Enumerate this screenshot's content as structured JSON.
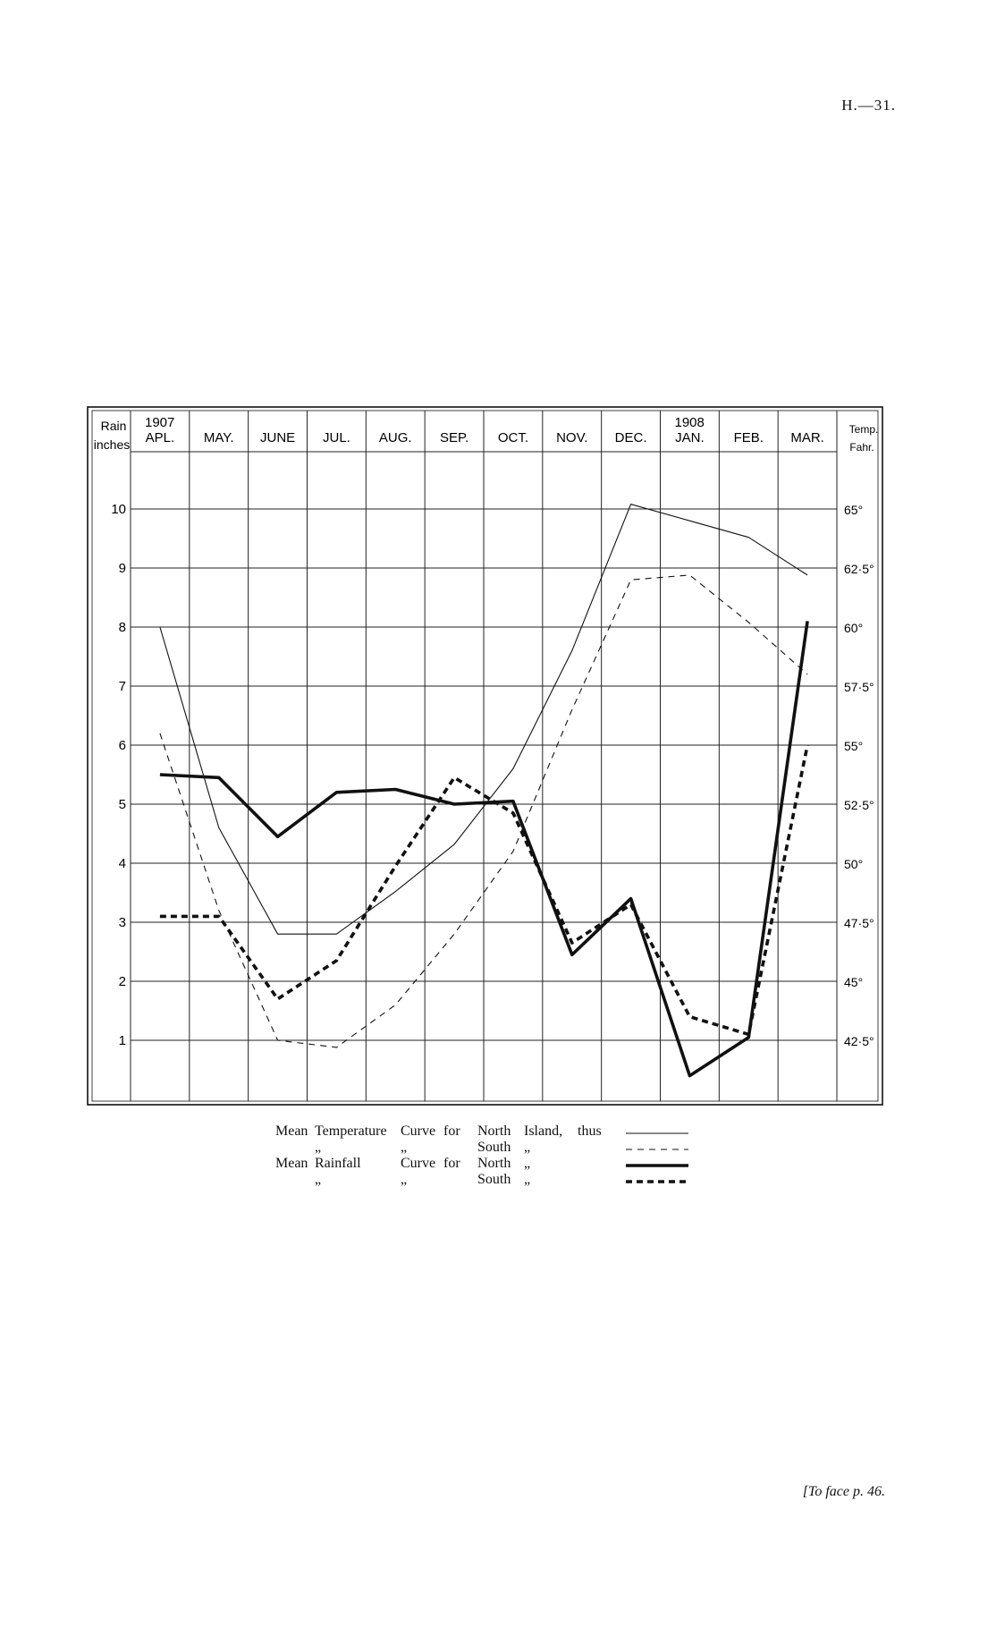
{
  "page_ref": "H.—31.",
  "footer_note": "[To face p. 46.",
  "chart_data": {
    "type": "line",
    "title": "",
    "left_axis": {
      "label_line1": "Rain",
      "label_line2": "inches",
      "ticks": [
        "1",
        "2",
        "3",
        "4",
        "5",
        "6",
        "7",
        "8",
        "9",
        "10"
      ],
      "range": [
        0,
        11
      ]
    },
    "right_axis": {
      "label_line1": "Temp.",
      "label_line2": "Fahr.",
      "ticks": [
        "42·5°",
        "45°",
        "47·5°",
        "50°",
        "52·5°",
        "55°",
        "57·5°",
        "60°",
        "62·5°",
        "65°"
      ],
      "range": [
        40,
        67.5
      ]
    },
    "years": [
      {
        "label": "1907",
        "at_month": 0
      },
      {
        "label": "1908",
        "at_month": 9
      }
    ],
    "categories": [
      "APL.",
      "MAY.",
      "JUNE",
      "JUL.",
      "AUG.",
      "SEP.",
      "OCT.",
      "NOV.",
      "DEC.",
      "JAN.",
      "FEB.",
      "MAR."
    ],
    "grid": true,
    "series": [
      {
        "axis": "right",
        "style": "thin-solid",
        "points": [
          [
            0,
            60
          ],
          [
            1,
            51.5
          ],
          [
            2,
            47
          ],
          [
            3,
            47
          ],
          [
            4,
            48.8
          ],
          [
            5,
            50.8
          ],
          [
            6,
            54
          ],
          [
            7,
            59
          ],
          [
            8,
            65.2
          ],
          [
            9,
            64.5
          ],
          [
            10,
            63.8
          ],
          [
            11,
            62.2
          ]
        ]
      },
      {
        "axis": "right",
        "style": "thin-dashed",
        "points": [
          [
            0,
            55.5
          ],
          [
            1,
            48
          ],
          [
            2,
            42.5
          ],
          [
            3,
            42.2
          ],
          [
            4,
            44
          ],
          [
            5,
            47
          ],
          [
            6,
            50.5
          ],
          [
            7,
            56.5
          ],
          [
            8,
            62
          ],
          [
            9,
            62.2
          ],
          [
            10,
            60.2
          ],
          [
            11,
            58
          ]
        ]
      },
      {
        "axis": "left",
        "style": "thick-solid",
        "points": [
          [
            0,
            5.5
          ],
          [
            1,
            5.45
          ],
          [
            2,
            4.45
          ],
          [
            3,
            5.2
          ],
          [
            4,
            5.25
          ],
          [
            5,
            5.0
          ],
          [
            6,
            5.05
          ],
          [
            7,
            2.45
          ],
          [
            8,
            3.4
          ],
          [
            9,
            0.4
          ],
          [
            10,
            1.05
          ],
          [
            11,
            8.1
          ]
        ]
      },
      {
        "axis": "left",
        "style": "thick-dashed",
        "points": [
          [
            0,
            3.1
          ],
          [
            1,
            3.1
          ],
          [
            2,
            1.7
          ],
          [
            3,
            2.35
          ],
          [
            4,
            3.95
          ],
          [
            5,
            5.45
          ],
          [
            6,
            4.85
          ],
          [
            7,
            2.65
          ],
          [
            8,
            3.3
          ],
          [
            9,
            1.4
          ],
          [
            10,
            1.1
          ],
          [
            11,
            6.0
          ]
        ]
      }
    ]
  },
  "legend": {
    "rows": [
      {
        "a": "Mean",
        "b": "Temperature",
        "c": "Curve",
        "d": "for",
        "e": "North",
        "f": "Island,",
        "g": "thus",
        "style": "thin-solid"
      },
      {
        "a": "",
        "b": "„",
        "c": "„",
        "d": "",
        "e": "South",
        "f": "„",
        "g": "",
        "style": "thin-dashed"
      },
      {
        "a": "Mean",
        "b": "Rainfall",
        "c": "Curve",
        "d": "for",
        "e": "North",
        "f": "„",
        "g": "",
        "style": "thick-solid"
      },
      {
        "a": "",
        "b": "„",
        "c": "„",
        "d": "",
        "e": "South",
        "f": "„",
        "g": "",
        "style": "thick-dashed"
      }
    ]
  }
}
